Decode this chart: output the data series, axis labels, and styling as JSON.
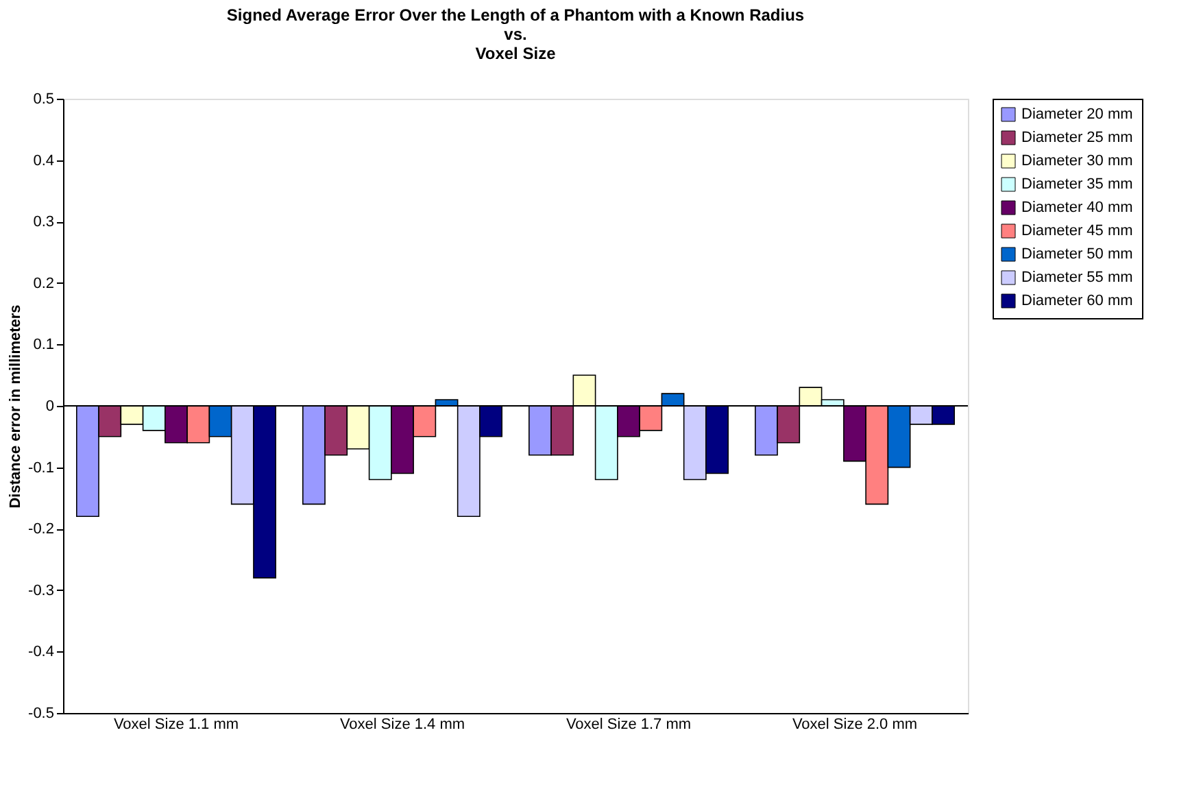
{
  "chart_data": {
    "type": "bar",
    "title": [
      "Signed Average Error Over the Length of a Phantom with a Known Radius",
      "vs.",
      "Voxel Size"
    ],
    "ylabel": "Distance error in millimeters",
    "categories": [
      "Voxel Size 1.1 mm",
      "Voxel Size 1.4 mm",
      "Voxel Size 1.7 mm",
      "Voxel Size 2.0 mm"
    ],
    "series": [
      {
        "name": "Diameter 20 mm",
        "color": "#9999ff",
        "values": [
          -0.18,
          -0.16,
          -0.08,
          -0.08
        ]
      },
      {
        "name": "Diameter 25 mm",
        "color": "#993366",
        "values": [
          -0.05,
          -0.08,
          -0.08,
          -0.06
        ]
      },
      {
        "name": "Diameter 30 mm",
        "color": "#ffffcc",
        "values": [
          -0.03,
          -0.07,
          0.05,
          0.03
        ]
      },
      {
        "name": "Diameter 35 mm",
        "color": "#ccffff",
        "values": [
          -0.04,
          -0.12,
          -0.12,
          0.01
        ]
      },
      {
        "name": "Diameter 40 mm",
        "color": "#660066",
        "values": [
          -0.06,
          -0.11,
          -0.05,
          -0.09
        ]
      },
      {
        "name": "Diameter 45 mm",
        "color": "#ff8080",
        "values": [
          -0.06,
          -0.05,
          -0.04,
          -0.16
        ]
      },
      {
        "name": "Diameter 50 mm",
        "color": "#0066cc",
        "values": [
          -0.05,
          0.01,
          0.02,
          -0.1
        ]
      },
      {
        "name": "Diameter 55 mm",
        "color": "#ccccff",
        "values": [
          -0.16,
          -0.18,
          -0.12,
          -0.03
        ]
      },
      {
        "name": "Diameter 60 mm",
        "color": "#000080",
        "values": [
          -0.28,
          -0.05,
          -0.11,
          -0.03
        ]
      }
    ],
    "ylim": [
      -0.5,
      0.5
    ],
    "yticks": [
      -0.5,
      -0.4,
      -0.3,
      -0.2,
      -0.1,
      0,
      0.1,
      0.2,
      0.3,
      0.4,
      0.5
    ],
    "ref_lines": [
      {
        "axis": "y",
        "value": 0,
        "color": "#000000"
      }
    ],
    "grid": false,
    "legend": "right"
  }
}
